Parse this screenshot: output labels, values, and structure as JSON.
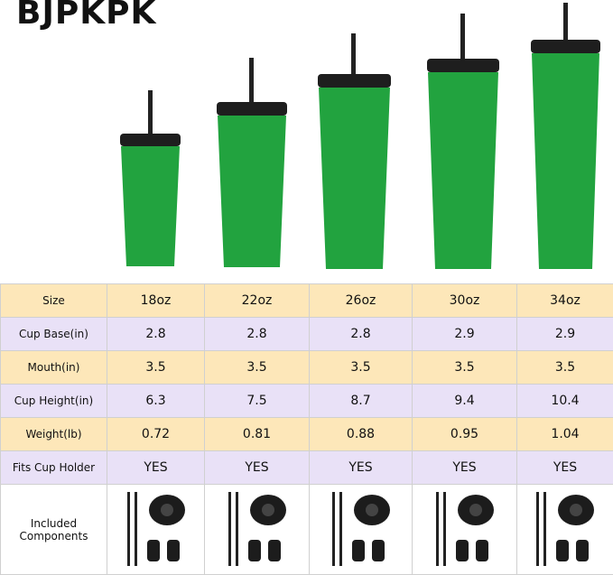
{
  "brand": "BJPKPK",
  "table": {
    "rows": [
      [
        "Size",
        "18oz",
        "22oz",
        "26oz",
        "30oz",
        "34oz"
      ],
      [
        "Cup Base(in)",
        "2.8",
        "2.8",
        "2.8",
        "2.9",
        "2.9"
      ],
      [
        "Mouth(in)",
        "3.5",
        "3.5",
        "3.5",
        "3.5",
        "3.5"
      ],
      [
        "Cup Height(in)",
        "6.3",
        "7.5",
        "8.7",
        "9.4",
        "10.4"
      ],
      [
        "Weight(lb)",
        "0.72",
        "0.81",
        "0.88",
        "0.95",
        "1.04"
      ],
      [
        "Fits Cup Holder",
        "YES",
        "YES",
        "YES",
        "YES",
        "YES"
      ],
      [
        "Included Components"
      ]
    ]
  }
}
